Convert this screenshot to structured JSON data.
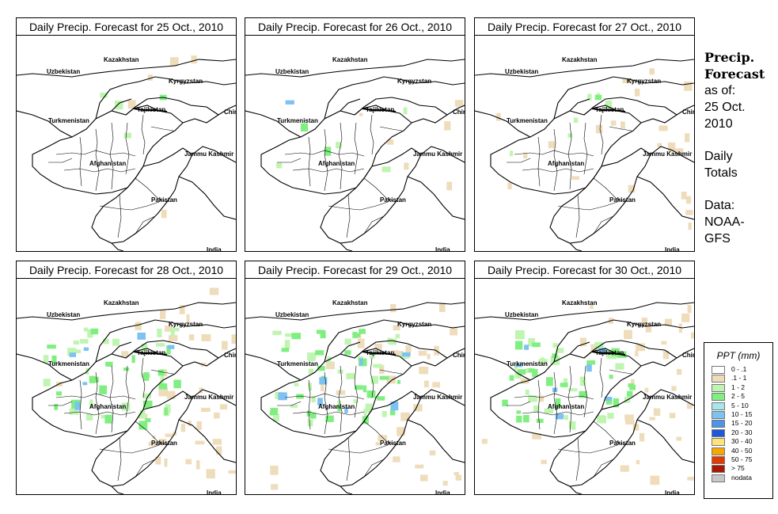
{
  "panels": [
    {
      "title": "Daily Precip. Forecast for  25 Oct., 2010",
      "day": "25 Oct."
    },
    {
      "title": "Daily Precip. Forecast for  26 Oct., 2010",
      "day": "26 Oct."
    },
    {
      "title": "Daily Precip. Forecast for  27 Oct., 2010",
      "day": "27 Oct."
    },
    {
      "title": "Daily Precip. Forecast for  28 Oct., 2010",
      "day": "28 Oct."
    },
    {
      "title": "Daily Precip. Forecast for  29 Oct., 2010",
      "day": "29 Oct."
    },
    {
      "title": "Daily Precip. Forecast for  30 Oct., 2010",
      "day": "30 Oct."
    }
  ],
  "map_labels": {
    "kazakhstan": "Kazakhstan",
    "uzbekistan": "Uzbekistan",
    "kyrgyzstan": "Kyrgyzstan",
    "tajikistan": "Tajikistan",
    "turkmenistan": "Turkmenistan",
    "china": "China",
    "afghanistan": "Afghanistan",
    "jammu_kashmir": "Jammu Kashmir",
    "pakistan": "Pakistan",
    "india": "India"
  },
  "info": {
    "heading_line1": "Precip.",
    "heading_line2": "Forecast",
    "asof_line1": "as of:",
    "asof_line2": "25 Oct.",
    "asof_line3": "2010",
    "totals_line1": "Daily",
    "totals_line2": "Totals",
    "data_line1": "Data:",
    "data_line2": "NOAA-",
    "data_line3": "GFS"
  },
  "legend": {
    "title": "PPT (mm)",
    "items": [
      {
        "label": "0 - .1",
        "color": "#ffffff"
      },
      {
        "label": ".1 - 1",
        "color": "#eedcbb"
      },
      {
        "label": "1 - 2",
        "color": "#bff5b0"
      },
      {
        "label": "2 - 5",
        "color": "#80ee80"
      },
      {
        "label": "5 - 10",
        "color": "#a6e6ec"
      },
      {
        "label": "10 - 15",
        "color": "#7ec2f2"
      },
      {
        "label": "15 - 20",
        "color": "#4c93ea"
      },
      {
        "label": "20 - 30",
        "color": "#1f57d6"
      },
      {
        "label": "30 - 40",
        "color": "#ffe27a"
      },
      {
        "label": "40 - 50",
        "color": "#f6a800"
      },
      {
        "label": "50 - 75",
        "color": "#e23a00"
      },
      {
        "label": "> 75",
        "color": "#a81800"
      },
      {
        "label": "nodata",
        "color": "#c8c8c8"
      }
    ]
  },
  "precip_pattern": [
    {
      "tan": 5,
      "lgreen": 3,
      "green": 1,
      "blue": 0
    },
    {
      "tan": 6,
      "lgreen": 4,
      "green": 2,
      "blue": 1
    },
    {
      "tan": 22,
      "lgreen": 6,
      "green": 1,
      "blue": 0
    },
    {
      "tan": 40,
      "lgreen": 30,
      "green": 22,
      "blue": 6
    },
    {
      "tan": 35,
      "lgreen": 30,
      "green": 28,
      "blue": 8
    },
    {
      "tan": 38,
      "lgreen": 30,
      "green": 26,
      "blue": 7
    }
  ]
}
